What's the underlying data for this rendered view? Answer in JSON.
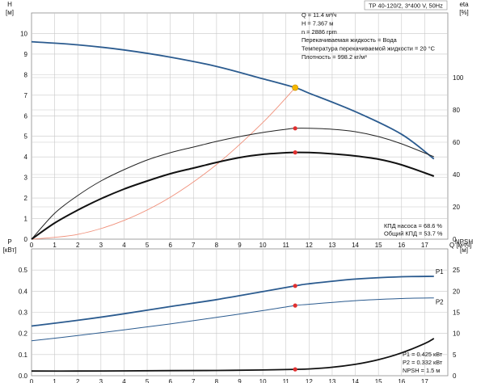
{
  "chart_data": [
    {
      "type": "line",
      "title": "TP 40-120/2, 3*400 V, 50Hz",
      "xlabel": "Q [м³/ч]",
      "ylabel": "H\n[м]",
      "ylabel_right": "eta\n[%]",
      "xlim": [
        0,
        18
      ],
      "ylim": [
        0,
        11
      ],
      "ylim_right": [
        0,
        140
      ],
      "x_ticks": [
        "0",
        "1",
        "2",
        "3",
        "4",
        "5",
        "6",
        "7",
        "8",
        "9",
        "10",
        "11",
        "12",
        "13",
        "14",
        "15",
        "16",
        "17"
      ],
      "y_ticks": [
        "0",
        "1",
        "2",
        "3",
        "4",
        "5",
        "6",
        "7",
        "8",
        "9",
        "10"
      ],
      "y_ticks_right": [
        "0",
        "20",
        "40",
        "60",
        "80",
        "100"
      ],
      "grid": true,
      "colors": {
        "head": "#2b5b8f",
        "eff_total": "#111111",
        "eff_pump": "#222222",
        "system": "#f0907a",
        "op_point": "#f5b800",
        "marker": "#e03030"
      },
      "series": [
        {
          "name": "",
          "axis": "left",
          "role": "head",
          "x": [
            0,
            2,
            4,
            6,
            8,
            10,
            11.4,
            12,
            14,
            16,
            17.4
          ],
          "y": [
            9.6,
            9.45,
            9.2,
            8.85,
            8.4,
            7.8,
            7.367,
            7.1,
            6.2,
            5.1,
            3.9
          ]
        },
        {
          "name": "",
          "axis": "left",
          "role": "system",
          "x": [
            0,
            2,
            4,
            6,
            8,
            10,
            11.4
          ],
          "y": [
            0,
            0.23,
            0.91,
            2.04,
            3.63,
            5.67,
            7.367
          ]
        },
        {
          "name": "",
          "axis": "right",
          "role": "eff_pump",
          "x": [
            0,
            1,
            2,
            3,
            4,
            5,
            6,
            7,
            8,
            9,
            10,
            11,
            11.4,
            12,
            13,
            14,
            15,
            16,
            17.4
          ],
          "y": [
            0,
            16,
            27,
            36,
            43,
            49,
            53.5,
            57,
            60.5,
            63.5,
            66,
            68,
            68.6,
            68.6,
            68,
            66.5,
            63.5,
            59,
            51
          ]
        },
        {
          "name": "",
          "axis": "right",
          "role": "eff_total",
          "x": [
            0,
            1,
            2,
            3,
            4,
            5,
            6,
            7,
            8,
            9,
            10,
            11,
            11.4,
            12,
            13,
            14,
            15,
            16,
            17.4
          ],
          "y": [
            0,
            10,
            18,
            25,
            31,
            36,
            40.5,
            44,
            47.5,
            50.5,
            52.5,
            53.5,
            53.7,
            53.6,
            52.8,
            51.5,
            49.5,
            46,
            39
          ]
        }
      ],
      "markers": [
        {
          "axis": "left",
          "x": 11.4,
          "y": 7.367,
          "kind": "op_point"
        },
        {
          "axis": "right",
          "x": 11.4,
          "y": 68.6,
          "kind": "marker"
        },
        {
          "axis": "right",
          "x": 11.4,
          "y": 53.7,
          "kind": "marker"
        }
      ],
      "annotations": [
        "Q = 11.4 м³/ч",
        "H = 7.367 м",
        "n = 2886 rpm",
        "Перекачиваемая жидкость = Вода",
        "Температура перекачиваемой жидкости = 20 °C",
        "Плотность = 998.2 кг/м³"
      ],
      "annotations_lower": [
        "КПД насоса = 68.6 %",
        "Общий КПД = 53.7 %"
      ]
    },
    {
      "type": "line",
      "title": "",
      "xlabel": "",
      "ylabel": "P\n[кВт]",
      "ylabel_right": "NPSH\n[м]",
      "xlim": [
        0,
        18
      ],
      "ylim": [
        0,
        0.6
      ],
      "ylim_right": [
        0,
        30
      ],
      "x_ticks": [
        "0",
        "1",
        "2",
        "3",
        "4",
        "5",
        "6",
        "7",
        "8",
        "9",
        "10",
        "11",
        "12",
        "13",
        "14",
        "15",
        "16",
        "17"
      ],
      "y_ticks": [
        "0.0",
        "0.1",
        "0.2",
        "0.3",
        "0.4",
        "0.5"
      ],
      "y_ticks_right": [
        "0",
        "5",
        "10",
        "15",
        "20",
        "25"
      ],
      "grid": true,
      "colors": {
        "p1": "#2b5b8f",
        "p2": "#2b5b8f",
        "npsh": "#111111",
        "marker": "#e03030"
      },
      "series": [
        {
          "name": "P1",
          "axis": "left",
          "role": "p1",
          "x": [
            0,
            2,
            4,
            6,
            8,
            10,
            11.4,
            12,
            14,
            16,
            17.4
          ],
          "y": [
            0.235,
            0.262,
            0.293,
            0.327,
            0.36,
            0.398,
            0.425,
            0.435,
            0.457,
            0.468,
            0.47
          ]
        },
        {
          "name": "P2",
          "axis": "left",
          "role": "p2",
          "x": [
            0,
            2,
            4,
            6,
            8,
            10,
            11.4,
            12,
            14,
            16,
            17.4
          ],
          "y": [
            0.165,
            0.19,
            0.217,
            0.245,
            0.276,
            0.308,
            0.332,
            0.338,
            0.355,
            0.365,
            0.368
          ]
        },
        {
          "name": "",
          "axis": "right",
          "role": "npsh",
          "x": [
            0,
            2,
            4,
            6,
            8,
            10,
            11.4,
            12,
            13,
            14,
            15,
            16,
            17,
            17.4
          ],
          "y": [
            1.1,
            1.1,
            1.15,
            1.2,
            1.25,
            1.35,
            1.5,
            1.6,
            2.0,
            2.7,
            3.8,
            5.4,
            7.6,
            8.8
          ]
        }
      ],
      "markers": [
        {
          "axis": "left",
          "x": 11.4,
          "y": 0.425,
          "kind": "marker"
        },
        {
          "axis": "left",
          "x": 11.4,
          "y": 0.332,
          "kind": "marker"
        },
        {
          "axis": "right",
          "x": 11.4,
          "y": 1.5,
          "kind": "marker"
        }
      ],
      "annotations_lower": [
        "P1 = 0.425 кВт",
        "P2 = 0.332 кВт",
        "NPSH = 1.5 м"
      ]
    }
  ]
}
